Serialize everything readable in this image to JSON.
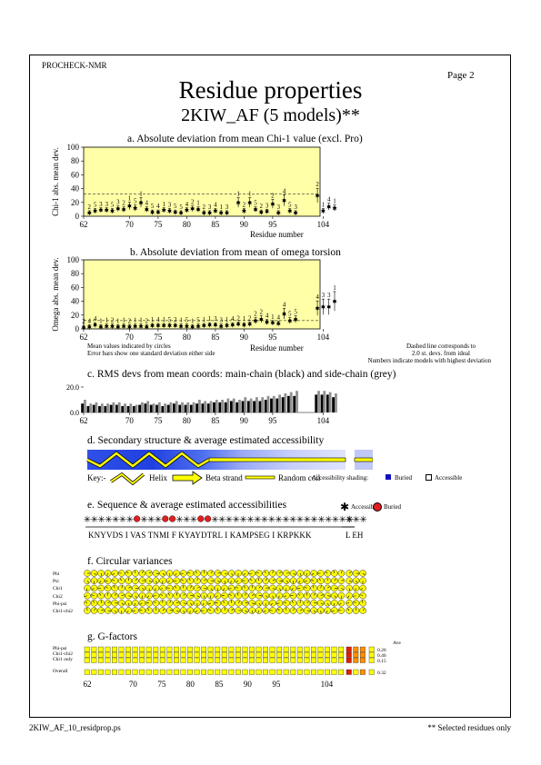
{
  "header": {
    "program": "PROCHECK-NMR",
    "page": "Page  2",
    "title": "Residue properties",
    "subtitle": "2KIW_AF (5 models)**"
  },
  "footer": {
    "file": "2KIW_AF_10_residprop.ps",
    "note": "** Selected residues only"
  },
  "panel_a": {
    "title": "a. Absolute deviation from mean Chi-1 value (excl. Pro)",
    "ylabel": "Chi-1 abs. mean dev.",
    "xlabel": "Residue number"
  },
  "panel_b": {
    "title": "b. Absolute deviation from mean of omega torsion",
    "ylabel": "Omega abs. mean dev.",
    "xlabel": "Residue number",
    "note_left1": "Mean values indicated by circles",
    "note_left2": "Error bars show one standard deviation either side",
    "note_right1": "Dashed line corresponds to",
    "note_right2": "2.0 st. devs. from ideal",
    "note_right3": "Numbers indicate models with highest deviation"
  },
  "panel_c": {
    "title": "c. RMS devs from mean coords: main-chain (black) and side-chain (grey)"
  },
  "panel_d": {
    "title": "d. Secondary structure & average estimated accessibility",
    "key_label": "Key:-",
    "helix": "Helix",
    "beta": "Beta strand",
    "coil": "Random coil",
    "shading": "Accessibility shading:",
    "buried": "Buried",
    "accessible": "Accessible"
  },
  "panel_e": {
    "title": "e. Sequence & average estimated accessibilities",
    "accessible": "Accessible",
    "buried": "Buried",
    "sequence_main": "KNYVDS I VAS TNMI F KYAYDTRL I KAMPSEG I KRPKKK",
    "sequence_tail": "L EH"
  },
  "panel_f": {
    "title": "f. Circular variances",
    "rows": [
      "Phi",
      "Psi",
      "Chi1",
      "Chi2",
      "Phi-psi",
      "Chi1-chi2"
    ]
  },
  "panel_g": {
    "title": "g. G-factors",
    "rows": [
      "Phi-psi",
      "Chi1-chi2",
      "Chi1 only",
      "Overall"
    ],
    "avg_label": "Ave",
    "avg_values": [
      "0.26",
      "0.46",
      "0.15",
      "0.32"
    ]
  },
  "colors": {
    "panel_bg": "#ffffa8",
    "helix_fill": "#ffff00",
    "buried": "#1010c0",
    "red_dot": "#e02020",
    "gfactor_yellow": "#ffff00",
    "gfactor_orange": "#ff9000",
    "gfactor_red": "#e02000"
  },
  "chart_data": [
    {
      "type": "scatter",
      "title": "a. Absolute deviation from mean Chi-1 value (excl. Pro)",
      "xlabel": "Residue number",
      "ylabel": "Chi-1 abs. mean dev.",
      "xlim": [
        61,
        109
      ],
      "ylim": [
        0,
        100
      ],
      "xticks": [
        62,
        70,
        75,
        80,
        85,
        90,
        95,
        104
      ],
      "yticks": [
        0,
        20,
        40,
        60,
        80,
        100
      ],
      "dashed_line": 32,
      "x": [
        63,
        64,
        65,
        66,
        67,
        68,
        69,
        70,
        71,
        72,
        73,
        74,
        75,
        76,
        77,
        78,
        79,
        80,
        81,
        82,
        83,
        84,
        85,
        86,
        87,
        89,
        90,
        91,
        92,
        93,
        94,
        95,
        96,
        97,
        98,
        99,
        103,
        104,
        105,
        106
      ],
      "y": [
        5,
        8,
        9,
        9,
        8,
        11,
        10,
        15,
        12,
        20,
        10,
        6,
        6,
        9,
        8,
        6,
        5,
        9,
        11,
        10,
        5,
        5,
        8,
        5,
        5,
        20,
        8,
        20,
        10,
        6,
        7,
        18,
        5,
        23,
        8,
        5,
        30,
        8,
        14,
        12
      ],
      "labels": [
        "2",
        "5",
        "3",
        "3",
        "5",
        "3",
        "2",
        "1",
        "5",
        "1",
        "4",
        "5",
        "4",
        "1",
        "3",
        "5",
        "5",
        "4",
        "2",
        "1",
        "2",
        "3",
        "4",
        "1",
        "3",
        "1",
        "2",
        "1",
        "5",
        "2",
        "3",
        "2",
        "3",
        "4",
        "5",
        "3",
        "2",
        "1",
        "4",
        "1"
      ]
    },
    {
      "type": "scatter",
      "title": "b. Absolute deviation from mean of omega torsion",
      "xlabel": "Residue number",
      "ylabel": "Omega abs. mean dev.",
      "xlim": [
        61,
        109
      ],
      "ylim": [
        0,
        100
      ],
      "xticks": [
        62,
        70,
        75,
        80,
        85,
        90,
        95,
        104
      ],
      "yticks": [
        0,
        20,
        40,
        60,
        80,
        100
      ],
      "dashed_line": 12,
      "x": [
        62,
        63,
        64,
        65,
        66,
        67,
        68,
        69,
        70,
        71,
        72,
        73,
        74,
        75,
        76,
        77,
        78,
        79,
        80,
        81,
        82,
        83,
        84,
        85,
        86,
        87,
        88,
        89,
        90,
        91,
        92,
        93,
        94,
        95,
        96,
        97,
        98,
        99,
        103,
        104,
        105,
        106
      ],
      "y": [
        2,
        3,
        6,
        3,
        4,
        4,
        3,
        4,
        3,
        4,
        4,
        3,
        5,
        5,
        5,
        5,
        5,
        4,
        4,
        3,
        4,
        5,
        6,
        6,
        4,
        5,
        6,
        7,
        6,
        7,
        12,
        14,
        10,
        9,
        8,
        22,
        12,
        14,
        30,
        32,
        32,
        40
      ],
      "labels": [
        "2",
        "4",
        "4",
        "1",
        "1",
        "2",
        "1",
        "1",
        "2",
        "1",
        "1",
        "2",
        "1",
        "4",
        "1",
        "5",
        "2",
        "1",
        "5",
        "1",
        "5",
        "1",
        "1",
        "3",
        "3",
        "1",
        "4",
        "2",
        "1",
        "2",
        "2",
        "2",
        "4",
        "1",
        "4",
        "4",
        "5",
        "5",
        "4",
        "3",
        "3",
        "1"
      ]
    },
    {
      "type": "bar",
      "title": "c. RMS devs from mean coords: main-chain (black) and side-chain (grey)",
      "ylim": [
        0,
        20
      ],
      "yticks": [
        0.0,
        20.0
      ],
      "xticks": [
        62,
        70,
        75,
        80,
        85,
        90,
        95,
        104
      ],
      "categories": [
        62,
        63,
        64,
        65,
        66,
        67,
        68,
        69,
        70,
        71,
        72,
        73,
        74,
        75,
        76,
        77,
        78,
        79,
        80,
        81,
        82,
        83,
        84,
        85,
        86,
        87,
        88,
        89,
        90,
        91,
        92,
        93,
        94,
        95,
        96,
        97,
        98,
        99,
        103,
        104,
        105,
        106
      ],
      "series": [
        {
          "name": "main-chain",
          "values": [
            7,
            5,
            6,
            5,
            5,
            6,
            6,
            5,
            5,
            5,
            6,
            7,
            6,
            6,
            5,
            6,
            7,
            6,
            6,
            6,
            7,
            7,
            7,
            8,
            8,
            8,
            9,
            8,
            9,
            9,
            9,
            9,
            10,
            11,
            11,
            12,
            13,
            13,
            14,
            14,
            14,
            12
          ]
        },
        {
          "name": "side-chain",
          "values": [
            10,
            7,
            8,
            7,
            7,
            8,
            8,
            7,
            7,
            6,
            8,
            9,
            7,
            8,
            7,
            8,
            9,
            8,
            8,
            8,
            10,
            9,
            9,
            10,
            10,
            11,
            11,
            10,
            12,
            11,
            12,
            12,
            13,
            13,
            14,
            15,
            16,
            17,
            17,
            17,
            16,
            15
          ]
        }
      ]
    }
  ]
}
